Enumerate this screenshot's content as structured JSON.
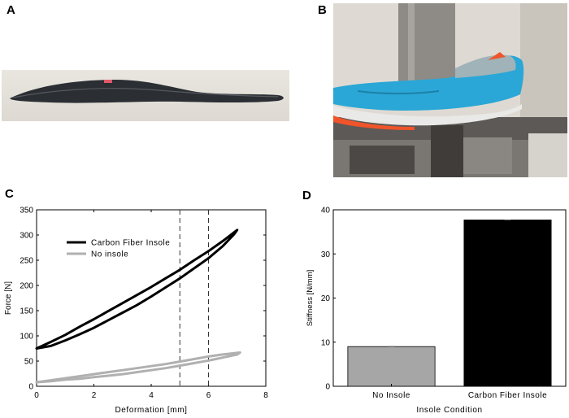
{
  "panels": {
    "a": {
      "label": "A"
    },
    "b": {
      "label": "B"
    },
    "c": {
      "label": "C"
    },
    "d": {
      "label": "D"
    }
  },
  "colors": {
    "carbon": "#000000",
    "no_insole_line": "#b0b0b0",
    "no_insole_bar": "#a6a6a6",
    "shoe_blue": "#2aa7d6",
    "shoe_orange": "#f0542a"
  },
  "chart_data": [
    {
      "type": "line",
      "panel": "C",
      "xlabel": "Deformation [mm]",
      "ylabel": "Force [N]",
      "xlim": [
        0,
        8
      ],
      "ylim": [
        0,
        350
      ],
      "xticks": [
        0,
        2,
        4,
        6,
        8
      ],
      "yticks": [
        0,
        50,
        100,
        150,
        200,
        250,
        300,
        350
      ],
      "vlines": [
        5,
        6
      ],
      "legend": "top-left",
      "grid": false,
      "series": [
        {
          "name": "Carbon Fiber Insole",
          "color": "#000000",
          "x": [
            0,
            0.5,
            1,
            1.5,
            2,
            2.5,
            3,
            3.5,
            4,
            4.5,
            5,
            5.5,
            6,
            6.5,
            7,
            6.9,
            6.5,
            6,
            5.5,
            5,
            4.5,
            4,
            3.5,
            3,
            2.5,
            2,
            1.5,
            1,
            0.5,
            0
          ],
          "y": [
            75,
            88,
            102,
            118,
            133,
            149,
            165,
            181,
            197,
            214,
            231,
            250,
            268,
            288,
            310,
            302,
            278,
            254,
            234,
            214,
            196,
            178,
            161,
            146,
            131,
            116,
            103,
            91,
            80,
            75
          ]
        },
        {
          "name": "No insole",
          "color": "#b0b0b0",
          "x": [
            0,
            0.5,
            1,
            1.5,
            2,
            2.5,
            3,
            3.5,
            4,
            4.5,
            5,
            5.5,
            6,
            6.5,
            7.1,
            7,
            6.5,
            6,
            5.5,
            5,
            4.5,
            4,
            3.5,
            3,
            2.5,
            2,
            1.5,
            1,
            0.5,
            0
          ],
          "y": [
            8,
            12,
            16,
            20,
            24,
            28,
            32,
            36,
            40,
            44,
            49,
            54,
            59,
            63,
            67,
            63,
            57,
            51,
            46,
            41,
            36,
            32,
            28,
            24,
            21,
            18,
            15,
            13,
            10,
            8
          ]
        }
      ]
    },
    {
      "type": "bar",
      "panel": "D",
      "xlabel": "Insole Condition",
      "ylabel": "Stiffness [N/mm]",
      "ylim": [
        0,
        40
      ],
      "yticks": [
        0,
        10,
        20,
        30,
        40
      ],
      "categories": [
        "No Insole",
        "Carbon Fiber Insole"
      ],
      "values": [
        9,
        37.7
      ],
      "colors": [
        "#a6a6a6",
        "#000000"
      ],
      "grid": false
    }
  ]
}
